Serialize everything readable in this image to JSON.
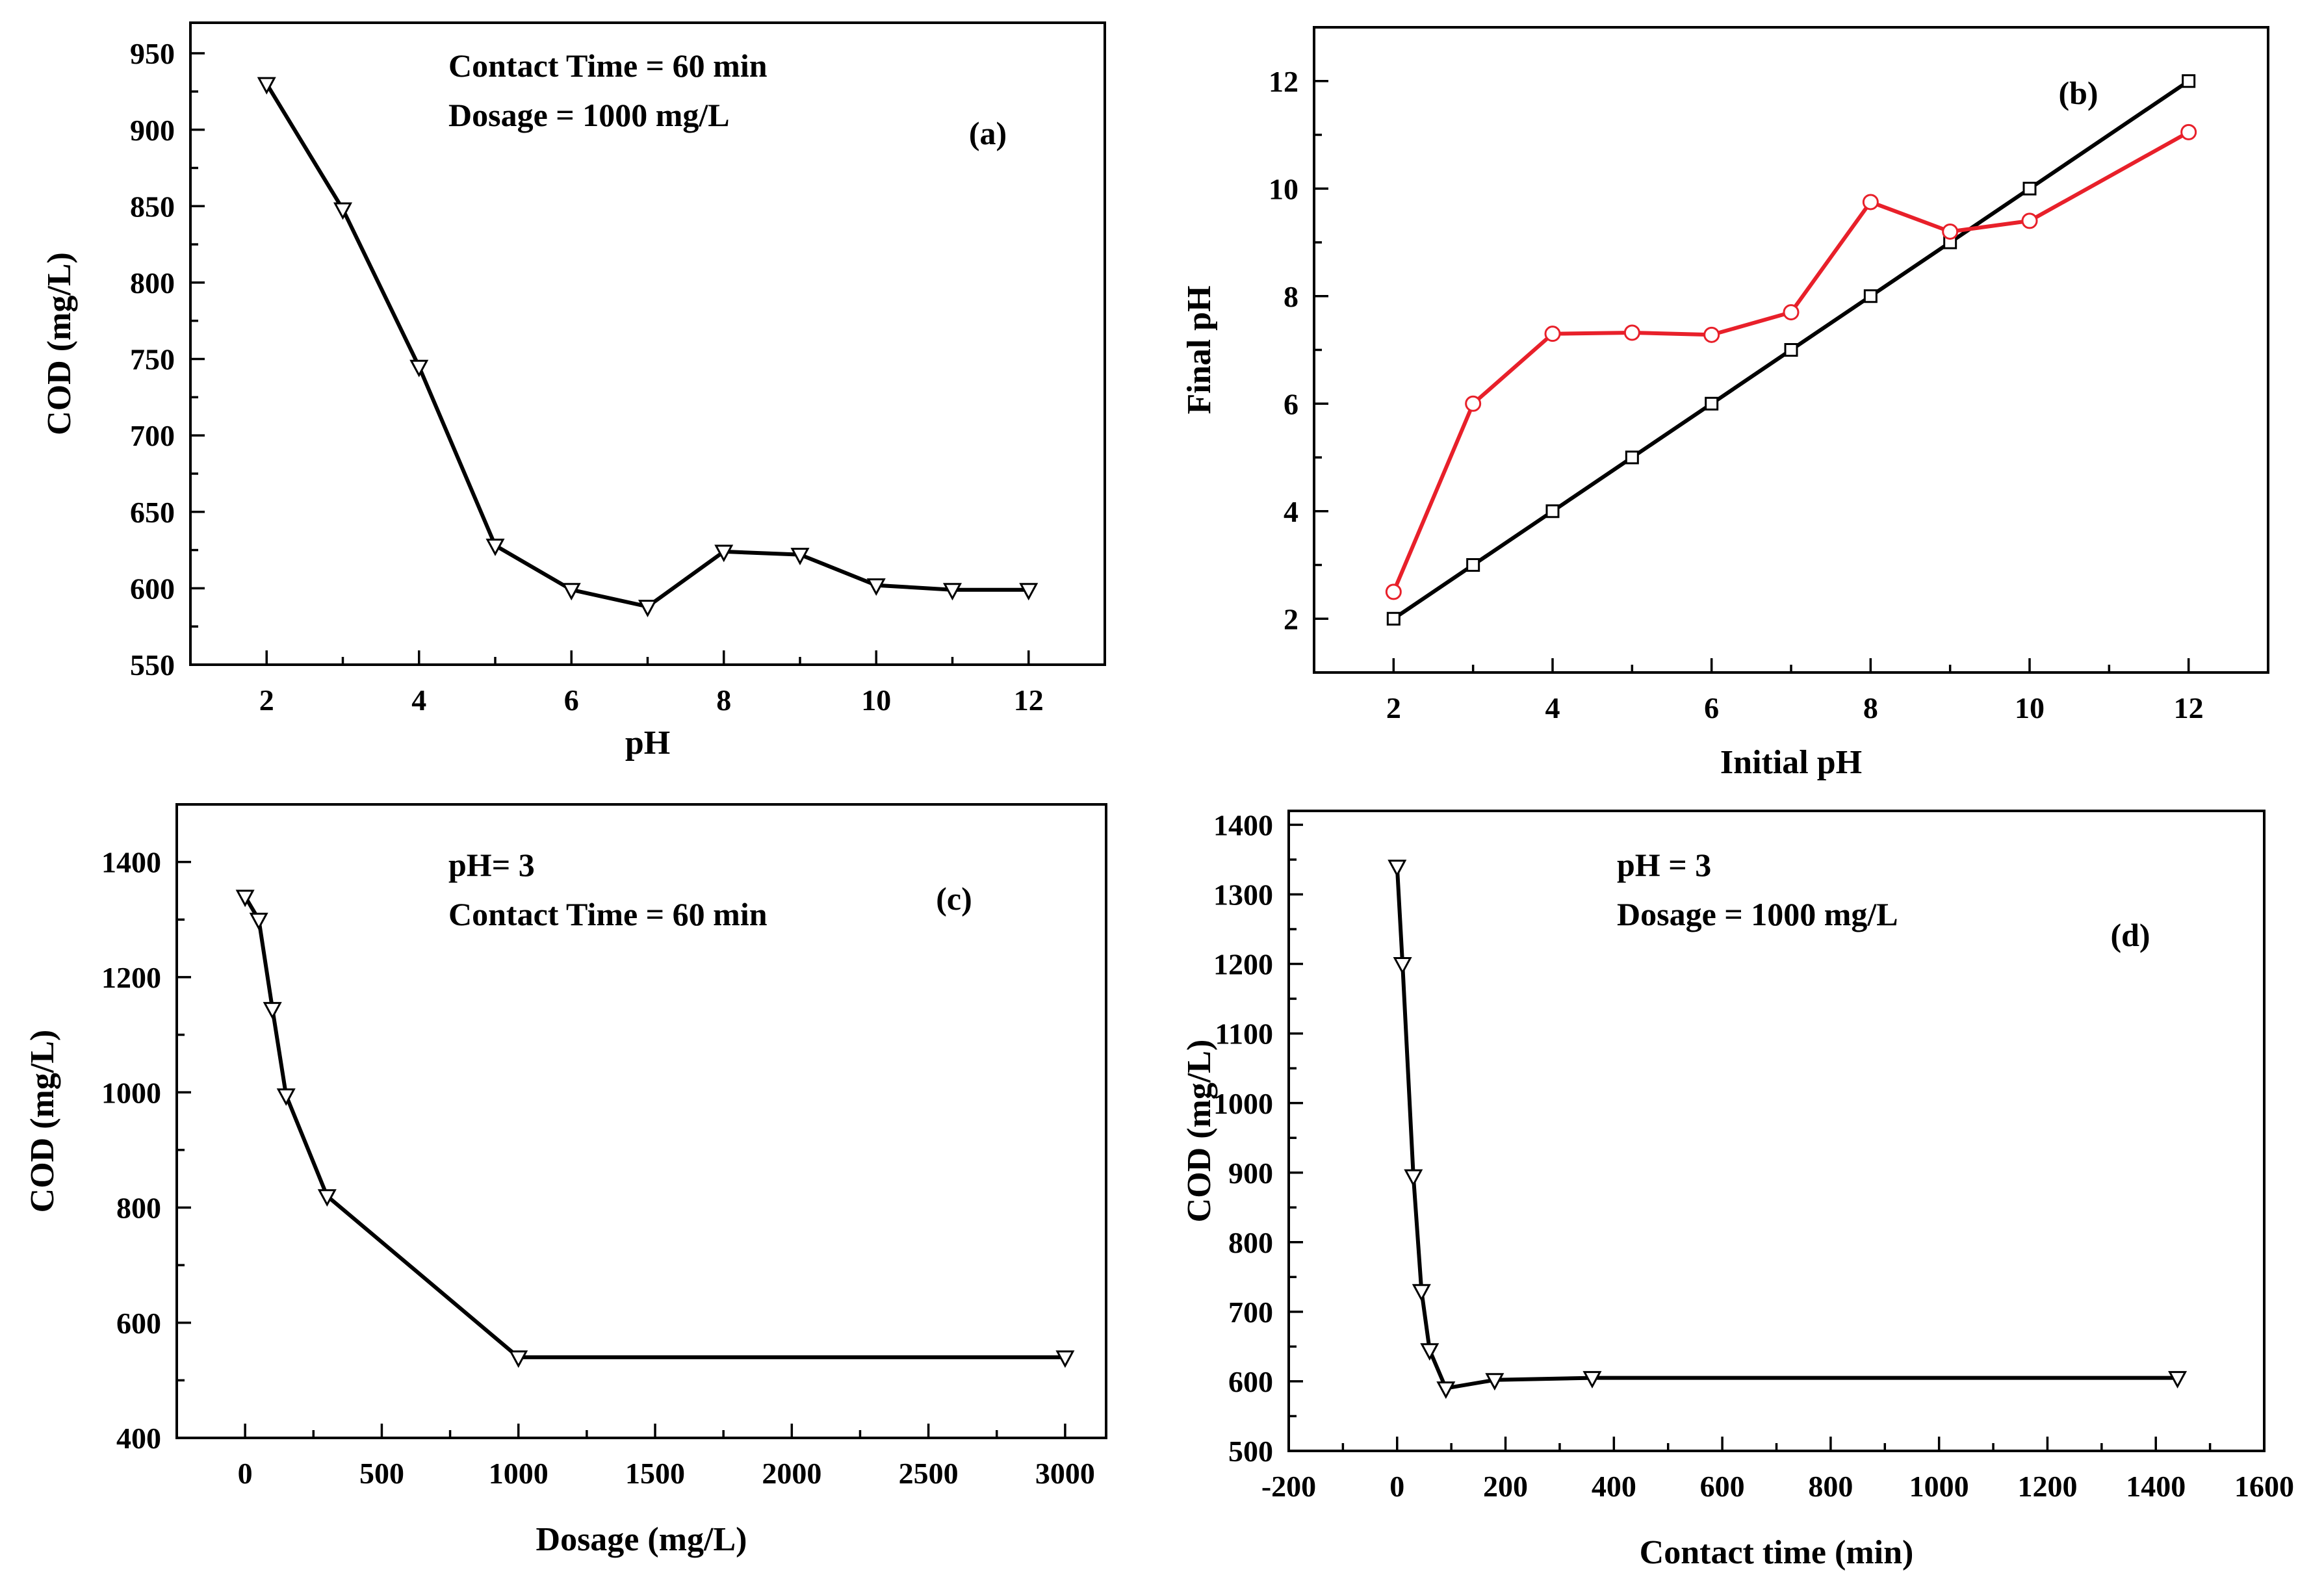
{
  "chart_data": [
    {
      "type": "line",
      "panel_label": "(a)",
      "annotation": [
        "Contact Time = 60 min",
        "Dosage = 1000 mg/L"
      ],
      "xlabel": "pH",
      "ylabel": "COD (mg/L)",
      "xlim": [
        1,
        13
      ],
      "ylim": [
        550,
        970
      ],
      "xticks": [
        2,
        4,
        6,
        8,
        10,
        12
      ],
      "yticks": [
        550,
        600,
        650,
        700,
        750,
        800,
        850,
        900,
        950
      ],
      "series": [
        {
          "marker": "triangle-down",
          "color": "#000000",
          "x": [
            2,
            3,
            4,
            5,
            6,
            7,
            8,
            9,
            10,
            11,
            12
          ],
          "y": [
            930,
            848,
            745,
            628,
            599,
            588,
            624,
            622,
            602,
            599,
            599
          ]
        }
      ]
    },
    {
      "type": "line",
      "panel_label": "(b)",
      "annotation": [],
      "xlabel": "Initial pH",
      "ylabel": "Final pH",
      "xlim": [
        1,
        13
      ],
      "ylim": [
        1,
        13
      ],
      "xticks": [
        2,
        4,
        6,
        8,
        10,
        12
      ],
      "yticks": [
        2,
        4,
        6,
        8,
        10,
        12
      ],
      "series": [
        {
          "marker": "square",
          "color": "#000000",
          "x": [
            2,
            3,
            4,
            5,
            6,
            7,
            8,
            9,
            10,
            12
          ],
          "y": [
            2,
            3,
            4,
            5,
            6,
            7,
            8,
            9,
            10,
            12
          ]
        },
        {
          "marker": "circle",
          "color": "#e8202a",
          "x": [
            2,
            3,
            4,
            5,
            6,
            7,
            8,
            9,
            10,
            12
          ],
          "y": [
            2.5,
            6.0,
            7.3,
            7.32,
            7.28,
            7.7,
            9.75,
            9.2,
            9.4,
            11.05
          ]
        }
      ]
    },
    {
      "type": "line",
      "panel_label": "(c)",
      "annotation": [
        "pH= 3",
        "Contact Time = 60 min"
      ],
      "xlabel": "Dosage (mg/L)",
      "ylabel": "COD (mg/L)",
      "xlim": [
        -250,
        3150
      ],
      "ylim": [
        400,
        1500
      ],
      "xticks": [
        0,
        500,
        1000,
        1500,
        2000,
        2500,
        3000
      ],
      "yticks": [
        400,
        600,
        800,
        1000,
        1200,
        1400
      ],
      "series": [
        {
          "marker": "triangle-down",
          "color": "#000000",
          "x": [
            0,
            50,
            100,
            150,
            300,
            1000,
            3000
          ],
          "y": [
            1340,
            1300,
            1145,
            995,
            820,
            540,
            540
          ]
        }
      ]
    },
    {
      "type": "line",
      "panel_label": "(d)",
      "annotation": [
        "pH = 3",
        "Dosage = 1000 mg/L"
      ],
      "xlabel": "Contact time (min)",
      "ylabel": "COD (mg/L)",
      "xlim": [
        -200,
        1600
      ],
      "ylim": [
        500,
        1420
      ],
      "xticks": [
        -200,
        0,
        200,
        400,
        600,
        800,
        1000,
        1200,
        1400,
        1600
      ],
      "yticks": [
        500,
        600,
        700,
        800,
        900,
        1000,
        1100,
        1200,
        1300,
        1400
      ],
      "series": [
        {
          "marker": "triangle-down",
          "color": "#000000",
          "x": [
            0,
            10,
            30,
            45,
            60,
            90,
            180,
            360,
            1440
          ],
          "y": [
            1340,
            1200,
            895,
            730,
            645,
            590,
            602,
            605,
            605
          ]
        }
      ]
    }
  ]
}
